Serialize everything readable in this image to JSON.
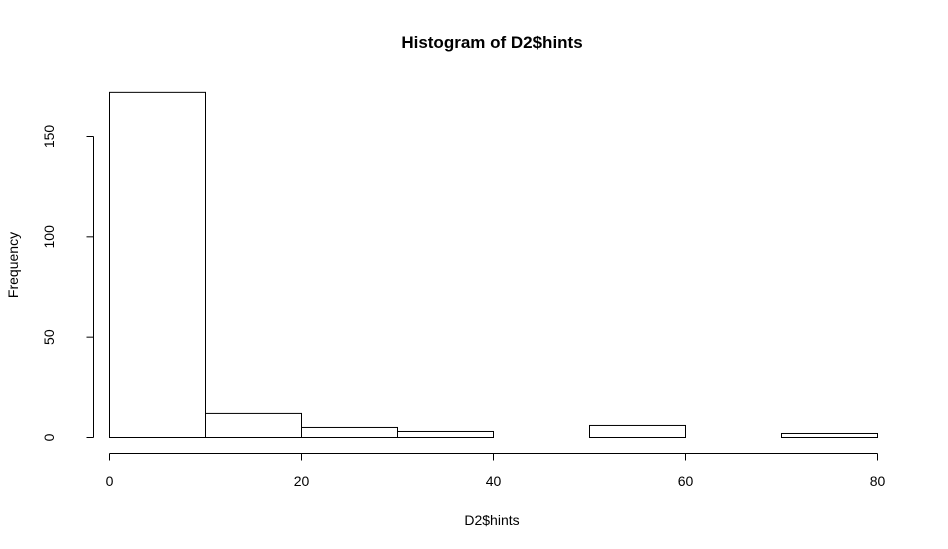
{
  "chart_data": {
    "type": "bar",
    "title": "Histogram of D2$hints",
    "xlabel": "D2$hints",
    "ylabel": "Frequency",
    "bin_edges": [
      0,
      10,
      20,
      30,
      40,
      50,
      60,
      70,
      80
    ],
    "values": [
      172,
      12,
      5,
      3,
      0,
      6,
      0,
      2
    ],
    "xlim": [
      0,
      80
    ],
    "ylim": [
      0,
      175
    ],
    "x_ticks": [
      0,
      20,
      40,
      60,
      80
    ],
    "y_ticks": [
      0,
      50,
      100,
      150
    ],
    "grid": false
  }
}
